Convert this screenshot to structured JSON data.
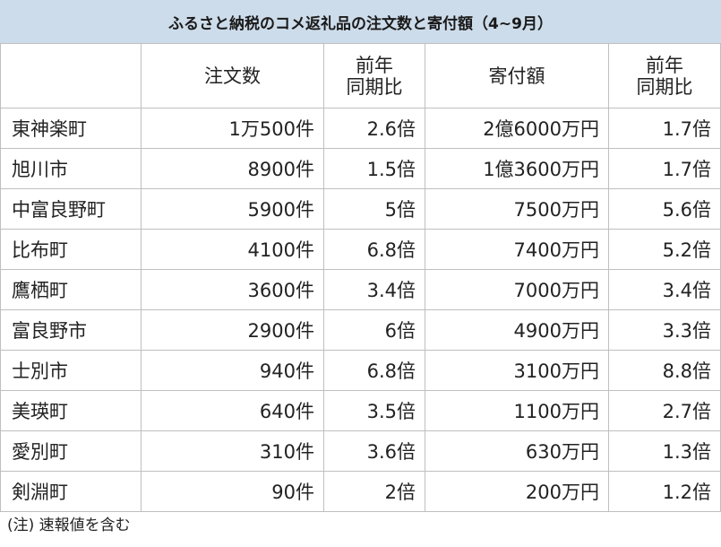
{
  "title": "ふるさと納税のコメ返礼品の注文数と寄付額（4~9月）",
  "headers": {
    "town": "",
    "orders": "注文数",
    "orders_yoy_line1": "前年",
    "orders_yoy_line2": "同期比",
    "donation": "寄付額",
    "donation_yoy_line1": "前年",
    "donation_yoy_line2": "同期比"
  },
  "rows": [
    {
      "town": "東神楽町",
      "orders": "1万500件",
      "orders_yoy": "2.6倍",
      "donation": "2億6000万円",
      "donation_yoy": "1.7倍"
    },
    {
      "town": "旭川市",
      "orders": "8900件",
      "orders_yoy": "1.5倍",
      "donation": "1億3600万円",
      "donation_yoy": "1.7倍"
    },
    {
      "town": "中富良野町",
      "orders": "5900件",
      "orders_yoy": "5倍",
      "donation": "7500万円",
      "donation_yoy": "5.6倍"
    },
    {
      "town": "比布町",
      "orders": "4100件",
      "orders_yoy": "6.8倍",
      "donation": "7400万円",
      "donation_yoy": "5.2倍"
    },
    {
      "town": "鷹栖町",
      "orders": "3600件",
      "orders_yoy": "3.4倍",
      "donation": "7000万円",
      "donation_yoy": "3.4倍"
    },
    {
      "town": "富良野市",
      "orders": "2900件",
      "orders_yoy": "6倍",
      "donation": "4900万円",
      "donation_yoy": "3.3倍"
    },
    {
      "town": "士別市",
      "orders": "940件",
      "orders_yoy": "6.8倍",
      "donation": "3100万円",
      "donation_yoy": "8.8倍"
    },
    {
      "town": "美瑛町",
      "orders": "640件",
      "orders_yoy": "3.5倍",
      "donation": "1100万円",
      "donation_yoy": "2.7倍"
    },
    {
      "town": "愛別町",
      "orders": "310件",
      "orders_yoy": "3.6倍",
      "donation": "630万円",
      "donation_yoy": "1.3倍"
    },
    {
      "town": "剣淵町",
      "orders": "90件",
      "orders_yoy": "2倍",
      "donation": "200万円",
      "donation_yoy": "1.2倍"
    }
  ],
  "footnote": "(注) 速報値を含む",
  "colors": {
    "title_background": "#cddcea",
    "grid_line": "#bfbfbf",
    "text": "#222222"
  }
}
